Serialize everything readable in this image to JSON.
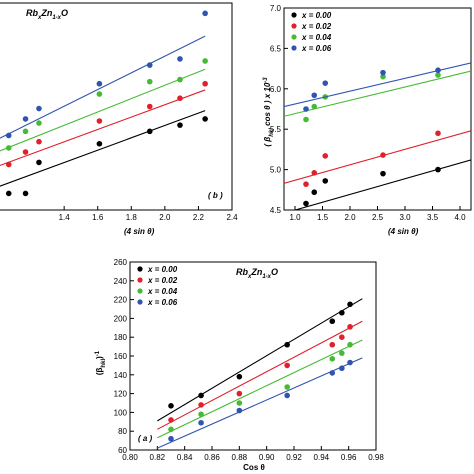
{
  "colors": {
    "x000": "#000000",
    "x002": "#e0202a",
    "x004": "#44bb33",
    "x006": "#2f55b0"
  },
  "chart_data": [
    {
      "id": "b",
      "type": "scatter",
      "title": "RbxZn1-xO",
      "title_main": "Rb",
      "title_sub1": "x",
      "title_mid": "Zn",
      "title_sub2": "1-x",
      "title_end": "O",
      "panel_label": "( b )",
      "xlabel": "(4 sin θ)",
      "ylabel": "",
      "xlim": [
        1.0,
        2.4
      ],
      "ylim": [
        0,
        10
      ],
      "xticks": [
        "1.4",
        "1.6",
        "1.8",
        "2.0",
        "2.2",
        "2.4"
      ],
      "legend_visible": false,
      "series": [
        {
          "name": "x = 0.00",
          "color": "#000000",
          "x": [
            1.07,
            1.17,
            1.25,
            1.61,
            1.91,
            2.09,
            2.24
          ],
          "y": [
            0.8,
            0.8,
            2.3,
            3.2,
            3.8,
            4.1,
            4.4
          ],
          "fit": [
            [
              1.0,
              1.1
            ],
            [
              2.24,
              4.8
            ]
          ]
        },
        {
          "name": "x = 0.02",
          "color": "#e0202a",
          "x": [
            1.07,
            1.17,
            1.25,
            1.61,
            1.91,
            2.09,
            2.24
          ],
          "y": [
            2.2,
            2.8,
            3.3,
            4.3,
            5.0,
            5.4,
            6.1
          ],
          "fit": [
            [
              1.0,
              2.1
            ],
            [
              2.24,
              5.8
            ]
          ]
        },
        {
          "name": "x = 0.04",
          "color": "#44bb33",
          "x": [
            1.07,
            1.17,
            1.25,
            1.61,
            1.91,
            2.09,
            2.24
          ],
          "y": [
            3.0,
            3.8,
            4.2,
            5.6,
            6.2,
            6.3,
            7.2
          ],
          "fit": [
            [
              1.0,
              2.8
            ],
            [
              2.24,
              6.8
            ]
          ]
        },
        {
          "name": "x = 0.06",
          "color": "#2f55b0",
          "x": [
            1.07,
            1.17,
            1.25,
            1.61,
            1.91,
            2.09,
            2.24
          ],
          "y": [
            3.6,
            4.4,
            4.9,
            6.1,
            7.0,
            7.3,
            9.5
          ],
          "fit": [
            [
              1.0,
              3.4
            ],
            [
              2.24,
              8.4
            ]
          ]
        }
      ]
    },
    {
      "id": "c",
      "type": "scatter",
      "title": "",
      "xlabel": "(4 sin θ)",
      "ylabel": "( βhkl cos θ ) x 10-3",
      "ylabel_a": "( β",
      "ylabel_sub": "hkl",
      "ylabel_b": " cos θ ) x 10",
      "ylabel_sup": "-3",
      "xlim": [
        0.8,
        4.2
      ],
      "ylim": [
        4.5,
        7.0
      ],
      "xticks": [
        "1.0",
        "1.5",
        "2.0",
        "2.5",
        "3.0",
        "3.5",
        "4.0"
      ],
      "yticks": [
        "4.5",
        "5.0",
        "5.5",
        "6.0",
        "6.5",
        "7.0"
      ],
      "legend": [
        "x = 0.00",
        "x = 0.02",
        "x = 0.04",
        "x = 0.06"
      ],
      "legend_position": "top-left",
      "series": [
        {
          "name": "x = 0.00",
          "color": "#000000",
          "x": [
            1.2,
            1.35,
            1.55,
            2.6,
            3.6
          ],
          "y": [
            4.58,
            4.72,
            4.86,
            4.95,
            5.0
          ],
          "fit": [
            [
              0.8,
              4.46
            ],
            [
              4.2,
              5.12
            ]
          ]
        },
        {
          "name": "x = 0.02",
          "color": "#e0202a",
          "x": [
            1.2,
            1.35,
            1.55,
            2.6,
            3.6
          ],
          "y": [
            4.82,
            4.96,
            5.17,
            5.18,
            5.45
          ],
          "fit": [
            [
              0.8,
              4.83
            ],
            [
              4.2,
              5.48
            ]
          ]
        },
        {
          "name": "x = 0.04",
          "color": "#44bb33",
          "x": [
            1.2,
            1.35,
            1.55,
            2.6,
            3.6
          ],
          "y": [
            5.62,
            5.78,
            5.9,
            6.15,
            6.17
          ],
          "fit": [
            [
              0.8,
              5.66
            ],
            [
              4.2,
              6.22
            ]
          ]
        },
        {
          "name": "x = 0.06",
          "color": "#2f55b0",
          "x": [
            1.2,
            1.35,
            1.55,
            2.6,
            3.6
          ],
          "y": [
            5.75,
            5.92,
            6.07,
            6.2,
            6.23
          ],
          "fit": [
            [
              0.8,
              5.78
            ],
            [
              4.2,
              6.32
            ]
          ]
        }
      ]
    },
    {
      "id": "a",
      "type": "scatter",
      "title": "RbxZn1-xO",
      "title_main": "Rb",
      "title_sub1": "x",
      "title_mid": "Zn",
      "title_sub2": "1-x",
      "title_end": "O",
      "panel_label": "( a )",
      "xlabel": "Cos θ",
      "ylabel": "(βhkl)-1",
      "ylabel_a": "(β",
      "ylabel_sub": "hkl",
      "ylabel_b": ")",
      "ylabel_sup": "-1",
      "xlim": [
        0.8,
        0.98
      ],
      "ylim": [
        60,
        260
      ],
      "xticks": [
        "0.80",
        "0.82",
        "0.84",
        "0.86",
        "0.88",
        "0.90",
        "0.92",
        "0.94",
        "0.96",
        "0.98"
      ],
      "yticks": [
        "60",
        "80",
        "100",
        "120",
        "140",
        "160",
        "180",
        "200",
        "220",
        "240",
        "260"
      ],
      "legend": [
        "x = 0.00",
        "x = 0.02",
        "x = 0.04",
        "x = 0.06"
      ],
      "legend_position": "top-left",
      "series": [
        {
          "name": "x = 0.00",
          "color": "#000000",
          "x": [
            0.83,
            0.852,
            0.88,
            0.915,
            0.948,
            0.955,
            0.961
          ],
          "y": [
            107,
            118,
            138,
            172,
            197,
            206,
            215
          ],
          "fit": [
            [
              0.82,
              91
            ],
            [
              0.97,
              221
            ]
          ]
        },
        {
          "name": "x = 0.02",
          "color": "#e0202a",
          "x": [
            0.83,
            0.852,
            0.88,
            0.915,
            0.948,
            0.955,
            0.961
          ],
          "y": [
            92,
            108,
            120,
            150,
            172,
            180,
            191
          ],
          "fit": [
            [
              0.82,
              82
            ],
            [
              0.97,
              197
            ]
          ]
        },
        {
          "name": "x = 0.04",
          "color": "#44bb33",
          "x": [
            0.83,
            0.852,
            0.88,
            0.915,
            0.948,
            0.955,
            0.961
          ],
          "y": [
            82,
            98,
            110,
            127,
            157,
            163,
            172
          ],
          "fit": [
            [
              0.82,
              73
            ],
            [
              0.97,
              177
            ]
          ]
        },
        {
          "name": "x = 0.06",
          "color": "#2f55b0",
          "x": [
            0.83,
            0.852,
            0.88,
            0.915,
            0.948,
            0.955,
            0.961
          ],
          "y": [
            72,
            89,
            102,
            118,
            142,
            147,
            153
          ],
          "fit": [
            [
              0.82,
              62
            ],
            [
              0.97,
              158
            ]
          ]
        }
      ]
    }
  ]
}
